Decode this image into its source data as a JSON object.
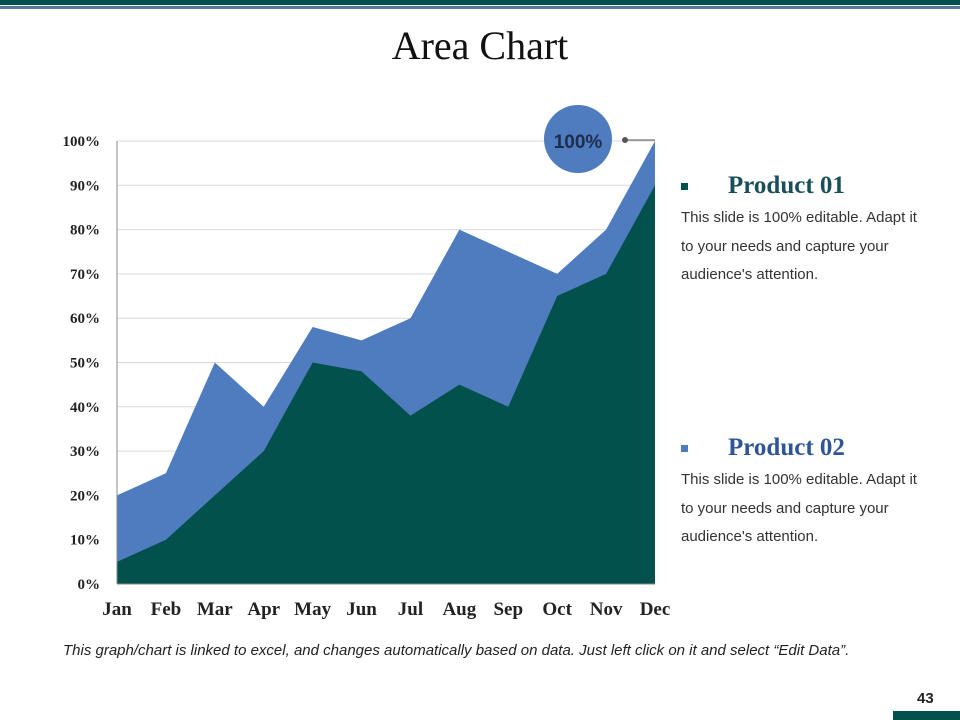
{
  "title": "Area Chart",
  "colors": {
    "dark": "#03514c",
    "blue": "#4f7bbf"
  },
  "callout": "100%",
  "legend": [
    {
      "name": "Product 01",
      "desc": "This slide is 100% editable. Adapt it to your needs and capture your audience's attention.",
      "color": "#03514c"
    },
    {
      "name": "Product 02",
      "desc": "This slide is 100% editable. Adapt it to your needs and capture your audience's attention.",
      "color": "#4f7bbf"
    }
  ],
  "footer": "This graph/chart is linked to excel, and changes automatically based on data. Just left click on it and select “Edit Data”.",
  "page_number": "43",
  "chart_data": {
    "type": "area",
    "title": "Area Chart",
    "categories": [
      "Jan",
      "Feb",
      "Mar",
      "Apr",
      "May",
      "Jun",
      "Jul",
      "Aug",
      "Sep",
      "Oct",
      "Nov",
      "Dec"
    ],
    "series": [
      {
        "name": "Product 02",
        "values": [
          20,
          25,
          50,
          40,
          58,
          55,
          60,
          80,
          75,
          70,
          80,
          100
        ]
      },
      {
        "name": "Product 01",
        "values": [
          5,
          10,
          20,
          30,
          50,
          48,
          38,
          45,
          40,
          65,
          70,
          90
        ]
      }
    ],
    "yticks": [
      "0%",
      "10%",
      "20%",
      "30%",
      "40%",
      "50%",
      "60%",
      "70%",
      "80%",
      "90%",
      "100%"
    ],
    "ylim": [
      0,
      100
    ],
    "grid": true
  }
}
